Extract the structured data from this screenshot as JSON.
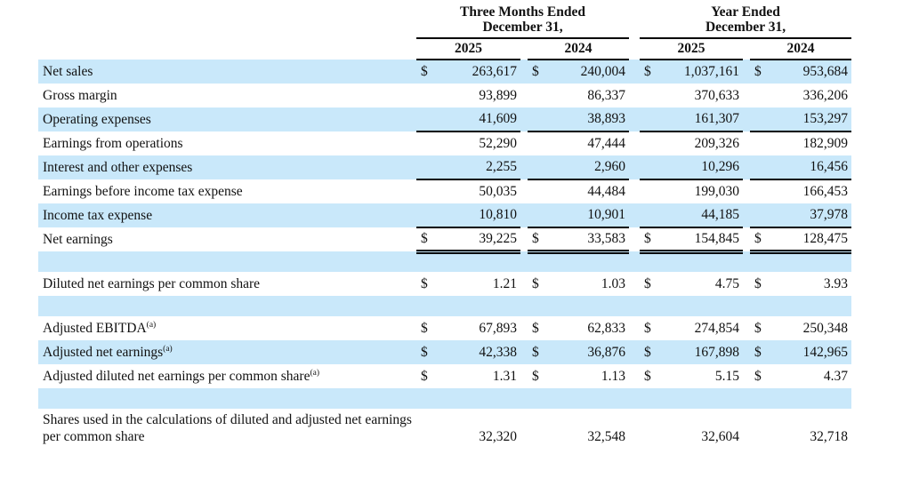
{
  "table": {
    "colors": {
      "stripe": "#c9e8fa",
      "rule": "#000000"
    },
    "col_groups": [
      {
        "title_line1": "Three Months Ended",
        "title_line2": "December 31,",
        "years": [
          "2025",
          "2024"
        ]
      },
      {
        "title_line1": "Year Ended",
        "title_line2": "December 31,",
        "years": [
          "2025",
          "2024"
        ]
      }
    ],
    "rows": [
      {
        "label": "Net sales",
        "dollar": true,
        "values": [
          "263,617",
          "240,004",
          "1,037,161",
          "953,684"
        ],
        "shade": "blue"
      },
      {
        "label": "Gross margin",
        "dollar": false,
        "values": [
          "93,899",
          "86,337",
          "370,633",
          "336,206"
        ],
        "shade": "white"
      },
      {
        "label": "Operating expenses",
        "dollar": false,
        "values": [
          "41,609",
          "38,893",
          "161,307",
          "153,297"
        ],
        "shade": "blue",
        "underline": "single"
      },
      {
        "label": "Earnings from operations",
        "dollar": false,
        "values": [
          "52,290",
          "47,444",
          "209,326",
          "182,909"
        ],
        "shade": "white"
      },
      {
        "label": "Interest and other expenses",
        "dollar": false,
        "values": [
          "2,255",
          "2,960",
          "10,296",
          "16,456"
        ],
        "shade": "blue",
        "underline": "single"
      },
      {
        "label": "Earnings before income tax expense",
        "dollar": false,
        "values": [
          "50,035",
          "44,484",
          "199,030",
          "166,453"
        ],
        "shade": "white"
      },
      {
        "label": "Income tax expense",
        "dollar": false,
        "values": [
          "10,810",
          "10,901",
          "44,185",
          "37,978"
        ],
        "shade": "blue",
        "underline": "single"
      },
      {
        "label": "Net earnings",
        "dollar": true,
        "values": [
          "39,225",
          "33,583",
          "154,845",
          "128,475"
        ],
        "shade": "white",
        "underline": "double"
      },
      {
        "type": "spacer",
        "shade": "blue"
      },
      {
        "label": "Diluted net earnings per common share",
        "dollar": true,
        "values": [
          "1.21",
          "1.03",
          "4.75",
          "3.93"
        ],
        "shade": "white"
      },
      {
        "type": "spacer",
        "shade": "blue"
      },
      {
        "label": "Adjusted EBITDA",
        "superscript": "(a)",
        "dollar": true,
        "values": [
          "67,893",
          "62,833",
          "274,854",
          "250,348"
        ],
        "shade": "white"
      },
      {
        "label": "Adjusted net earnings",
        "superscript": "(a)",
        "dollar": true,
        "values": [
          "42,338",
          "36,876",
          "167,898",
          "142,965"
        ],
        "shade": "blue"
      },
      {
        "label": "Adjusted diluted net earnings per common share",
        "superscript": "(a)",
        "dollar": true,
        "values": [
          "1.31",
          "1.13",
          "5.15",
          "4.37"
        ],
        "shade": "white"
      },
      {
        "type": "spacer",
        "shade": "blue"
      },
      {
        "label": "Shares used in the calculations of diluted and adjusted net earnings per common share",
        "dollar": false,
        "values": [
          "32,320",
          "32,548",
          "32,604",
          "32,718"
        ],
        "shade": "white",
        "tall": true
      }
    ]
  }
}
